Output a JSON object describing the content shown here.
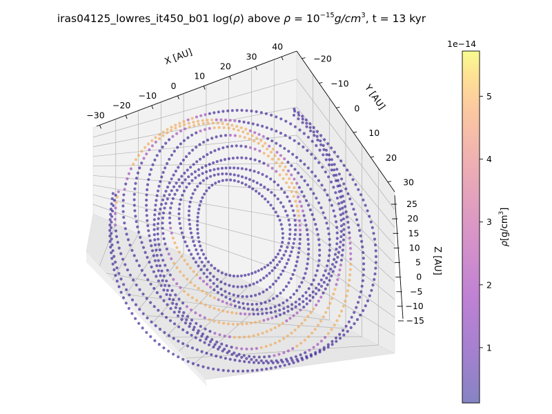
{
  "chart_data": {
    "type": "scatter",
    "title_lead": "iras04125_lowres_it450_b01 log(",
    "title_rho": "ρ",
    "title_mid": ") above ",
    "title_rho2": "ρ",
    "title_eq": " = 10",
    "title_exp": "−15",
    "title_unit": "g/cm",
    "title_unit_exp": "3",
    "title_tail": ", t = 13 kyr",
    "xlabel": "X [AU]",
    "ylabel": "Y [AU]",
    "zlabel": "Z [AU]",
    "x_ticks": [
      "−30",
      "−20",
      "−10",
      "0",
      "10",
      "20",
      "30",
      "40"
    ],
    "y_ticks": [
      "−20",
      "−10",
      "0",
      "10",
      "20",
      "30"
    ],
    "z_ticks": [
      "25",
      "20",
      "15",
      "10",
      "5",
      "0",
      "−5",
      "−10",
      "−15"
    ],
    "x_range": [
      -32,
      44
    ],
    "y_range": [
      -24,
      33
    ],
    "z_range": [
      -16,
      27
    ],
    "grid": true,
    "colorbar": {
      "label_rho": "ρ",
      "label_unit": "[g/cm",
      "label_exp": "3",
      "label_close": "]",
      "offset_label": "1e−14",
      "ticks": [
        "5",
        "4",
        "3",
        "2",
        "1"
      ],
      "range": [
        0.12,
        5.72
      ],
      "cmap": "plasma",
      "alpha": 0.5
    },
    "colors": {
      "pane": "#f2f2f2",
      "grid": "#b0b0b0",
      "low": "#2a0f8c",
      "mid": "#9a3fb3",
      "high": "#f0a34b"
    },
    "structure": {
      "kind": "toroidal shells of density points around a central cavity",
      "ring_radius_au": 16,
      "cavity_radius_au": 8
    }
  }
}
